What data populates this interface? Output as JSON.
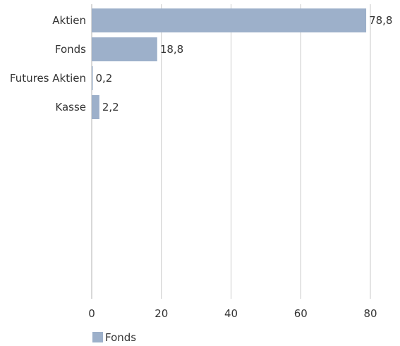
{
  "chart_data": {
    "type": "bar",
    "orientation": "horizontal",
    "categories": [
      "Aktien",
      "Fonds",
      "Futures Aktien",
      "Kasse"
    ],
    "series": [
      {
        "name": "Fonds",
        "values": [
          78.8,
          18.8,
          0.2,
          2.2
        ],
        "value_labels": [
          "78,8",
          "18,8",
          "0,2",
          "2,2"
        ],
        "color": "#9db0ca"
      }
    ],
    "xlim": [
      0,
      80
    ],
    "xticks": [
      0,
      20,
      40,
      60,
      80
    ],
    "xtick_labels": [
      "0",
      "20",
      "40",
      "60",
      "80"
    ],
    "grid": "vertical",
    "legend": {
      "placement": "bottom-left",
      "entries": [
        "Fonds"
      ]
    },
    "colors": {
      "bar": "#9db0ca",
      "grid": "#c8c8c8",
      "text": "#333333"
    }
  }
}
